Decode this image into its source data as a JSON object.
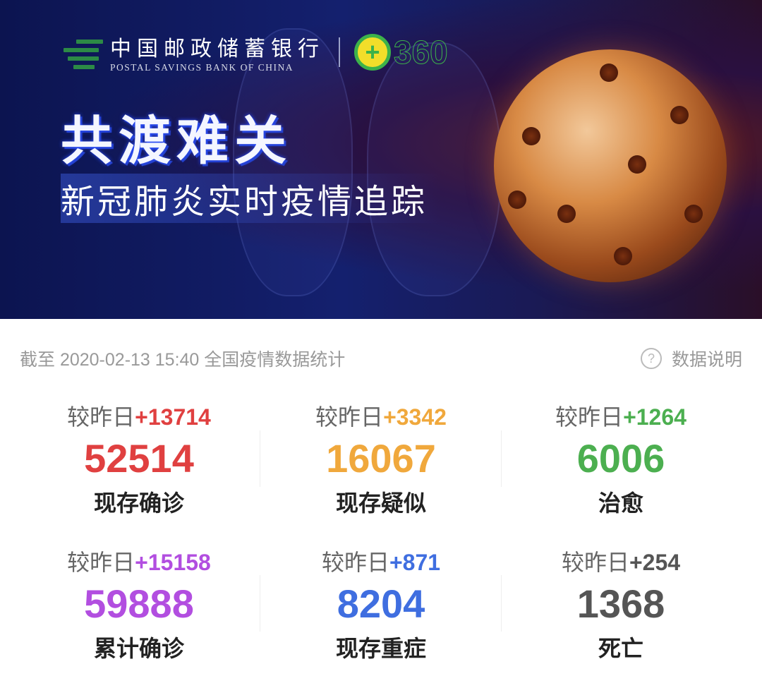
{
  "banner": {
    "bank_name_cn": "中国邮政储蓄银行",
    "bank_name_en": "POSTAL SAVINGS BANK OF CHINA",
    "partner_logo": "360",
    "title": "共渡难关",
    "subtitle": "新冠肺炎实时疫情追踪"
  },
  "header": {
    "timestamp_text": "截至 2020-02-13 15:40 全国疫情数据统计",
    "help_icon": "question-circle-icon",
    "help_label": "数据说明"
  },
  "stats": [
    {
      "delta_prefix": "较昨日",
      "delta": "+13714",
      "value": "52514",
      "label": "现存确诊",
      "color": "#e04040"
    },
    {
      "delta_prefix": "较昨日",
      "delta": "+3342",
      "value": "16067",
      "label": "现存疑似",
      "color": "#f0a83c"
    },
    {
      "delta_prefix": "较昨日",
      "delta": "+1264",
      "value": "6006",
      "label": "治愈",
      "color": "#4caf50"
    },
    {
      "delta_prefix": "较昨日",
      "delta": "+15158",
      "value": "59888",
      "label": "累计确诊",
      "color": "#b24ee0"
    },
    {
      "delta_prefix": "较昨日",
      "delta": "+871",
      "value": "8204",
      "label": "现存重症",
      "color": "#3f6ee0"
    },
    {
      "delta_prefix": "较昨日",
      "delta": "+254",
      "value": "1368",
      "label": "死亡",
      "color": "#555555"
    }
  ]
}
